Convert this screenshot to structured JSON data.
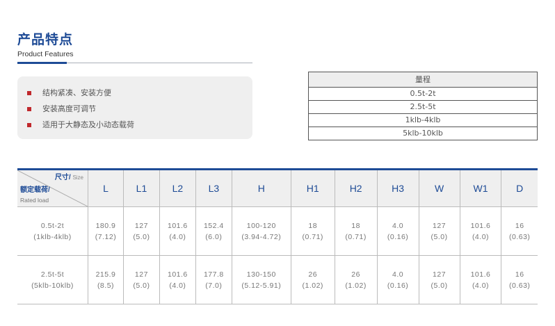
{
  "section": {
    "title": "产品特点",
    "subtitle": "Product Features"
  },
  "features": [
    "结构紧凑、安装方便",
    "安装高度可调节",
    "适用于大静态及小动态载荷"
  ],
  "range_table": {
    "header": "量程",
    "rows": [
      "0.5t-2t",
      "2.5t-5t",
      "1klb-4klb",
      "5klb-10klb"
    ]
  },
  "spec_table": {
    "corner": {
      "size_cn": "尺寸/",
      "size_en": "Size",
      "load_cn": "额定载荷/",
      "load_en": "Rated load"
    },
    "columns": [
      "L",
      "L1",
      "L2",
      "L3",
      "H",
      "H1",
      "H2",
      "H3",
      "W",
      "W1",
      "D"
    ],
    "rows": [
      {
        "load": "0.5t-2t",
        "load_alt": "(1klb-4klb)",
        "values": [
          [
            "180.9",
            "(7.12)"
          ],
          [
            "127",
            "(5.0)"
          ],
          [
            "101.6",
            "(4.0)"
          ],
          [
            "152.4",
            "(6.0)"
          ],
          [
            "100-120",
            "(3.94-4.72)"
          ],
          [
            "18",
            "(0.71)"
          ],
          [
            "18",
            "(0.71)"
          ],
          [
            "4.0",
            "(0.16)"
          ],
          [
            "127",
            "(5.0)"
          ],
          [
            "101.6",
            "(4.0)"
          ],
          [
            "16",
            "(0.63)"
          ]
        ]
      },
      {
        "load": "2.5t-5t",
        "load_alt": "(5klb-10klb)",
        "values": [
          [
            "215.9",
            "(8.5)"
          ],
          [
            "127",
            "(5.0)"
          ],
          [
            "101.6",
            "(4.0)"
          ],
          [
            "177.8",
            "(7.0)"
          ],
          [
            "130-150",
            "(5.12-5.91)"
          ],
          [
            "26",
            "(1.02)"
          ],
          [
            "26",
            "(1.02)"
          ],
          [
            "4.0",
            "(0.16)"
          ],
          [
            "127",
            "(5.0)"
          ],
          [
            "101.6",
            "(4.0)"
          ],
          [
            "16",
            "(0.63)"
          ]
        ]
      }
    ]
  },
  "colors": {
    "accent": "#1e4b96",
    "bullet": "#c0282c"
  }
}
